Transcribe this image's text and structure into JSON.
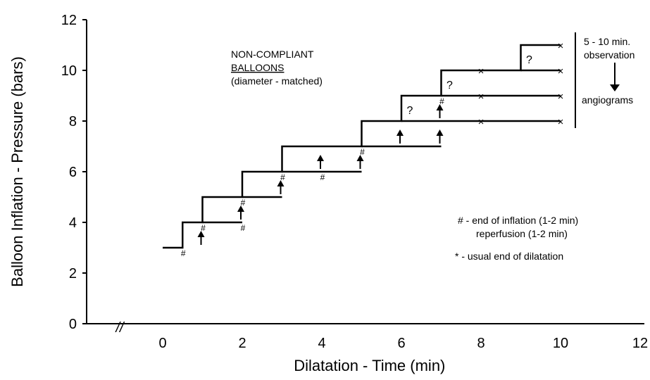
{
  "chart_data": {
    "type": "line",
    "title": "",
    "xlabel": "Dilatation - Time (min)",
    "ylabel": "Balloon Inflation - Pressure (bars)",
    "xlim": [
      -1.5,
      12
    ],
    "ylim": [
      0,
      12
    ],
    "xticks": [
      0,
      2,
      4,
      6,
      8,
      10,
      12
    ],
    "yticks": [
      0,
      2,
      4,
      6,
      8,
      10,
      12
    ],
    "axis_break_symbol": "//",
    "grid": false,
    "staircase": [
      [
        0,
        3
      ],
      [
        0.5,
        3
      ],
      [
        0.5,
        4
      ],
      [
        1,
        4
      ],
      [
        1,
        5
      ],
      [
        2,
        5
      ],
      [
        2,
        6
      ],
      [
        3,
        6
      ],
      [
        3,
        7
      ],
      [
        5,
        7
      ],
      [
        5,
        8
      ],
      [
        6,
        8
      ],
      [
        6,
        9
      ],
      [
        7,
        9
      ],
      [
        7,
        10
      ],
      [
        9,
        10
      ],
      [
        9,
        11
      ],
      [
        10,
        11
      ]
    ],
    "extensions": [
      {
        "x": [
          1,
          2
        ],
        "y": 4
      },
      {
        "x": [
          2,
          3
        ],
        "y": 5
      },
      {
        "x": [
          3,
          5
        ],
        "y": 6
      },
      {
        "x": [
          5,
          7
        ],
        "y": 7
      },
      {
        "x": [
          6,
          10
        ],
        "y": 8
      },
      {
        "x": [
          7,
          10
        ],
        "y": 9
      },
      {
        "x": [
          9,
          10
        ],
        "y": 10
      }
    ],
    "markers": {
      "hash": [
        [
          0.5,
          3
        ],
        [
          1,
          4
        ],
        [
          2,
          4
        ],
        [
          2,
          5
        ],
        [
          3,
          6
        ],
        [
          4,
          6
        ],
        [
          5,
          7
        ],
        [
          7,
          9
        ]
      ],
      "arrow": [
        [
          1,
          3
        ],
        [
          2,
          4
        ],
        [
          3,
          5
        ],
        [
          4,
          6
        ],
        [
          5,
          6
        ],
        [
          6,
          7
        ],
        [
          7,
          7
        ],
        [
          7,
          8
        ]
      ],
      "question": [
        [
          6,
          8
        ],
        [
          7,
          9
        ],
        [
          9,
          10
        ]
      ],
      "cross": [
        [
          8,
          8
        ],
        [
          10,
          8
        ],
        [
          8,
          9
        ],
        [
          10,
          9
        ],
        [
          8,
          10
        ],
        [
          10,
          10
        ],
        [
          10,
          11
        ]
      ]
    },
    "annotations": {
      "balloon_title_1": "NON-COMPLIANT",
      "balloon_title_2": "BALLOONS",
      "balloon_title_3": "(diameter - matched)",
      "observation_1": "5 - 10 min.",
      "observation_2": "observation",
      "observation_3": "angiograms",
      "legend_hash_1": "# - end of inflation (1-2 min)",
      "legend_hash_2": "reperfusion (1-2 min)",
      "legend_star": "* - usual end of dilatation"
    }
  }
}
